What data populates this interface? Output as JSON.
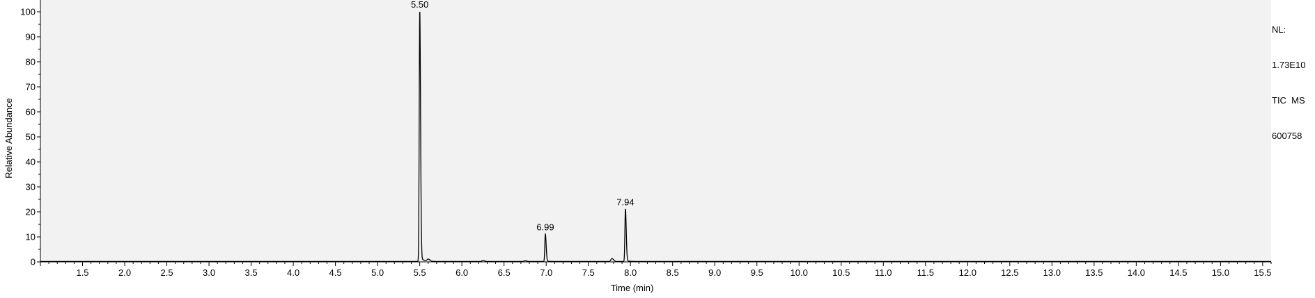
{
  "chart_data": {
    "type": "line",
    "title": "",
    "xlabel": "Time (min)",
    "ylabel": "Relative Abundance",
    "xlim": [
      1.0,
      15.6
    ],
    "ylim": [
      0,
      100
    ],
    "x_ticks": [
      1.5,
      2.0,
      2.5,
      3.0,
      3.5,
      4.0,
      4.5,
      5.0,
      5.5,
      6.0,
      6.5,
      7.0,
      7.5,
      8.0,
      8.5,
      9.0,
      9.5,
      10.0,
      10.5,
      11.0,
      11.5,
      12.0,
      12.5,
      13.0,
      13.5,
      14.0,
      14.5,
      15.0,
      15.5
    ],
    "x_tick_labels": [
      "1.5",
      "2.0",
      "2.5",
      "3.0",
      "3.5",
      "4.0",
      "4.5",
      "5.0",
      "5.5",
      "6.0",
      "6.5",
      "7.0",
      "7.5",
      "8.0",
      "8.5",
      "9.0",
      "9.5",
      "10.0",
      "10.5",
      "11.0",
      "11.5",
      "12.0",
      "12.5",
      "13.0",
      "13.5",
      "14.0",
      "14.5",
      "15.0",
      "15.5"
    ],
    "y_ticks": [
      0,
      10,
      20,
      30,
      40,
      50,
      60,
      70,
      80,
      90,
      100
    ],
    "y_tick_labels": [
      "0",
      "10",
      "20",
      "30",
      "40",
      "50",
      "60",
      "70",
      "80",
      "90",
      "100"
    ],
    "peaks": [
      {
        "rt": 5.5,
        "height": 100,
        "label": "5.50"
      },
      {
        "rt": 6.99,
        "height": 11,
        "label": "6.99"
      },
      {
        "rt": 7.94,
        "height": 21,
        "label": "7.94"
      }
    ],
    "minor_peaks": [
      {
        "rt": 5.6,
        "height": 0.8
      },
      {
        "rt": 6.25,
        "height": 0.4
      },
      {
        "rt": 6.75,
        "height": 0.3
      },
      {
        "rt": 7.78,
        "height": 1.2
      }
    ],
    "grid": false
  },
  "annotation": {
    "nl_label": "NL:",
    "nl_value": "1.73E10",
    "scan_type": "TIC  MS",
    "file_id": "600758"
  },
  "colors": {
    "plot_background": "#f2f2f2",
    "trace": "#000000",
    "axis": "#000000"
  }
}
